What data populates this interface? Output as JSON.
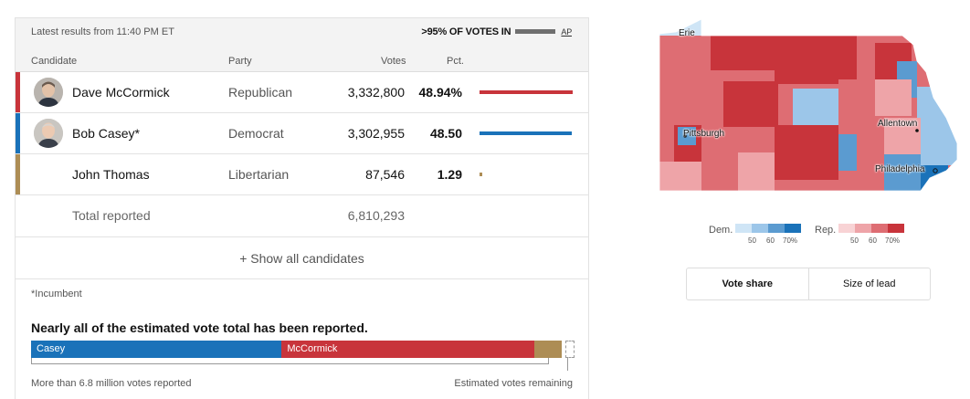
{
  "header": {
    "latest": "Latest results from 11:40 PM ET",
    "votes_in": ">95% OF VOTES IN",
    "source": "AP"
  },
  "columns": {
    "candidate": "Candidate",
    "party": "Party",
    "votes": "Votes",
    "pct": "Pct."
  },
  "candidates": [
    {
      "name": "Dave McCormick",
      "party": "Republican",
      "votes": "3,332,800",
      "pct": "48.94%",
      "share": 0.4894,
      "color": "#c8343b"
    },
    {
      "name": "Bob Casey*",
      "party": "Democrat",
      "votes": "3,302,955",
      "pct": "48.50",
      "share": 0.485,
      "color": "#1a72b9"
    },
    {
      "name": "John Thomas",
      "party": "Libertarian",
      "votes": "87,546",
      "pct": "1.29",
      "share": 0.0129,
      "color": "#ad8d55"
    }
  ],
  "total": {
    "label": "Total reported",
    "votes": "6,810,293"
  },
  "show_all": "+ Show all candidates",
  "incumbent_note": "*Incumbent",
  "estimate": {
    "headline": "Nearly all of the estimated vote total has been reported.",
    "casey_label": "Casey",
    "mccormick_label": "McCormick",
    "reported_note": "More than 6.8 million votes reported",
    "remaining_note": "Estimated votes remaining"
  },
  "map": {
    "cities": [
      "Erie",
      "Pittsburgh",
      "Allentown",
      "Philadelphia"
    ]
  },
  "legend": {
    "dem_label": "Dem.",
    "rep_label": "Rep.",
    "ticks": [
      "50",
      "60",
      "70%"
    ],
    "dem_colors": [
      "#cfe5f6",
      "#9cc6e9",
      "#5b9bd0",
      "#1a72b9"
    ],
    "rep_colors": [
      "#f8d3d5",
      "#eea4a8",
      "#de6d73",
      "#c8343b"
    ]
  },
  "toggle": {
    "vote_share": "Vote share",
    "size_of_lead": "Size of lead"
  }
}
